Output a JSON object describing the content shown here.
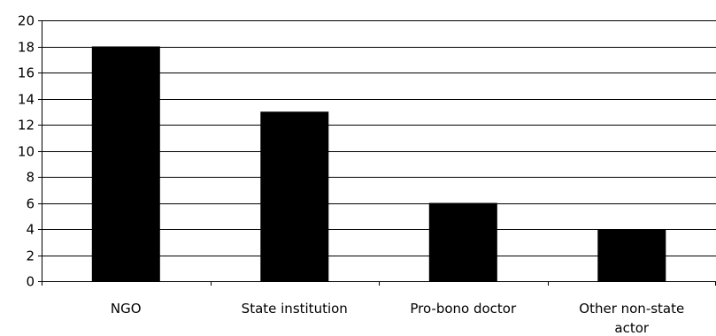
{
  "chart_data": {
    "type": "bar",
    "categories": [
      "NGO",
      "State institution",
      "Pro-bono doctor",
      "Other non-state actor"
    ],
    "category_lines": [
      [
        "NGO"
      ],
      [
        "State institution"
      ],
      [
        "Pro-bono doctor"
      ],
      [
        "Other non-state",
        "actor"
      ]
    ],
    "values": [
      18,
      13,
      6,
      4
    ],
    "ylim": [
      0,
      20
    ],
    "yticks": [
      "0",
      "2",
      "4",
      "6",
      "8",
      "10",
      "12",
      "14",
      "16",
      "18",
      "20"
    ],
    "grid": true,
    "title": "",
    "xlabel": "",
    "ylabel": "",
    "colors": {
      "bar": "#000000",
      "grid": "#000000",
      "axis": "#000000",
      "background": "#ffffff"
    }
  }
}
